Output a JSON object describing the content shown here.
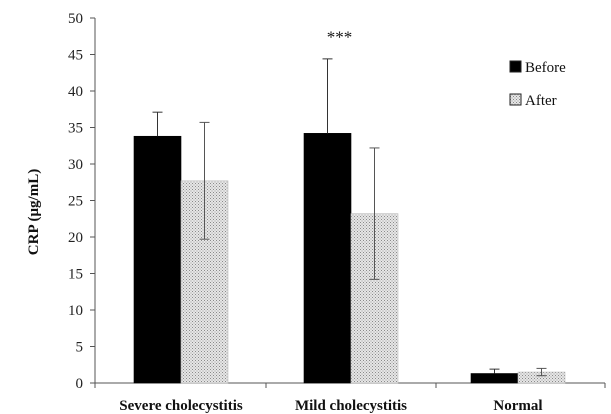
{
  "chart_data": {
    "type": "bar",
    "title": "",
    "xlabel": "",
    "ylabel": "CRP (μg/mL)",
    "ylim": [
      0,
      50
    ],
    "yticks": [
      0,
      5,
      10,
      15,
      20,
      25,
      30,
      35,
      40,
      45,
      50
    ],
    "categories": [
      "Severe cholecystitis",
      "Mild cholecystitis",
      "Normal"
    ],
    "series": [
      {
        "name": "Before",
        "values": [
          33.8,
          34.2,
          1.3
        ],
        "error": [
          3.3,
          10.2,
          0.6
        ],
        "color": "#000000",
        "pattern": "solid"
      },
      {
        "name": "After",
        "values": [
          27.7,
          23.2,
          1.5
        ],
        "error": [
          8.0,
          9.0,
          0.5
        ],
        "color": "#d9d9d9",
        "pattern": "dotted"
      }
    ],
    "annotations": [
      {
        "text": "***",
        "category": "Mild cholecystitis",
        "y": 47.5
      }
    ],
    "legend": {
      "position": "top-right"
    },
    "grid": false
  }
}
